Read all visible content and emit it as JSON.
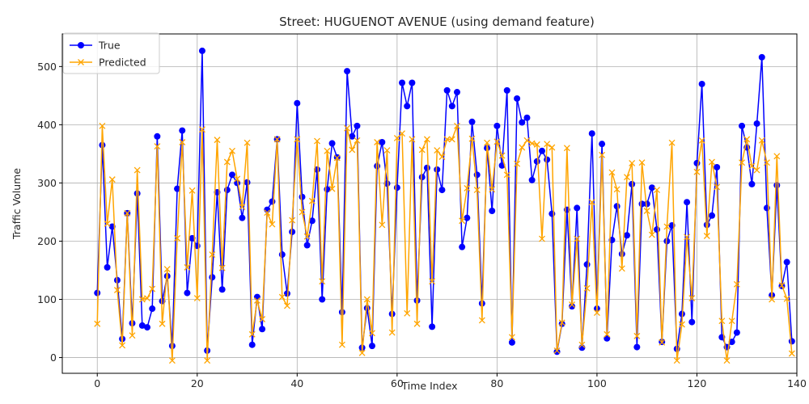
{
  "chart_data": {
    "type": "line",
    "title": "Street: HUGUENOT AVENUE (using demand feature)",
    "xlabel": "Time Index",
    "ylabel": "Traffic Volume",
    "xlim": [
      -7,
      140
    ],
    "ylim": [
      -27,
      556
    ],
    "xticks": [
      0,
      20,
      40,
      60,
      80,
      100,
      120,
      140
    ],
    "yticks": [
      0,
      100,
      200,
      300,
      400,
      500
    ],
    "grid": true,
    "legend_position": "upper-left",
    "series": [
      {
        "name": "True",
        "color": "#0000ff",
        "marker": "circle",
        "values": [
          111,
          365,
          155,
          225,
          133,
          32,
          248,
          59,
          282,
          55,
          52,
          84,
          380,
          97,
          140,
          20,
          290,
          390,
          111,
          205,
          192,
          527,
          12,
          138,
          284,
          117,
          288,
          314,
          300,
          240,
          301,
          22,
          104,
          49,
          254,
          268,
          375,
          177,
          110,
          216,
          437,
          276,
          193,
          235,
          323,
          100,
          289,
          368,
          344,
          78,
          492,
          380,
          398,
          17,
          85,
          20,
          329,
          370,
          299,
          75,
          292,
          472,
          432,
          472,
          98,
          310,
          326,
          53,
          323,
          288,
          459,
          432,
          456,
          190,
          240,
          405,
          314,
          93,
          360,
          252,
          398,
          330,
          459,
          26,
          445,
          404,
          412,
          305,
          337,
          355,
          340,
          247,
          10,
          58,
          254,
          88,
          257,
          17,
          160,
          385,
          84,
          367,
          33,
          202,
          260,
          178,
          210,
          298,
          18,
          264,
          264,
          292,
          220,
          27,
          200,
          227,
          15,
          75,
          267,
          61,
          334,
          470,
          228,
          244,
          327,
          35,
          18,
          27,
          43,
          398,
          361,
          298,
          402,
          516,
          257,
          107,
          296,
          123,
          164,
          28
        ]
      },
      {
        "name": "Predicted",
        "color": "#ffa500",
        "marker": "x",
        "values": [
          58,
          398,
          230,
          306,
          116,
          21,
          248,
          38,
          322,
          100,
          102,
          118,
          363,
          58,
          152,
          -5,
          205,
          370,
          155,
          287,
          102,
          392,
          -5,
          177,
          374,
          154,
          336,
          355,
          307,
          259,
          369,
          40,
          98,
          66,
          249,
          229,
          375,
          104,
          89,
          236,
          375,
          250,
          208,
          269,
          372,
          131,
          355,
          290,
          343,
          22,
          394,
          357,
          373,
          8,
          100,
          42,
          370,
          228,
          356,
          43,
          377,
          385,
          76,
          375,
          58,
          357,
          375,
          131,
          356,
          345,
          375,
          375,
          398,
          235,
          291,
          376,
          288,
          64,
          369,
          289,
          371,
          347,
          314,
          35,
          333,
          361,
          373,
          368,
          366,
          204,
          367,
          361,
          12,
          60,
          360,
          91,
          204,
          22,
          119,
          267,
          77,
          348,
          40,
          318,
          289,
          153,
          310,
          334,
          37,
          335,
          252,
          211,
          288,
          26,
          225,
          369,
          -5,
          57,
          207,
          102,
          319,
          373,
          209,
          336,
          293,
          63,
          -5,
          63,
          126,
          335,
          375,
          329,
          322,
          373,
          335,
          100,
          346,
          124,
          101,
          7
        ]
      }
    ]
  }
}
